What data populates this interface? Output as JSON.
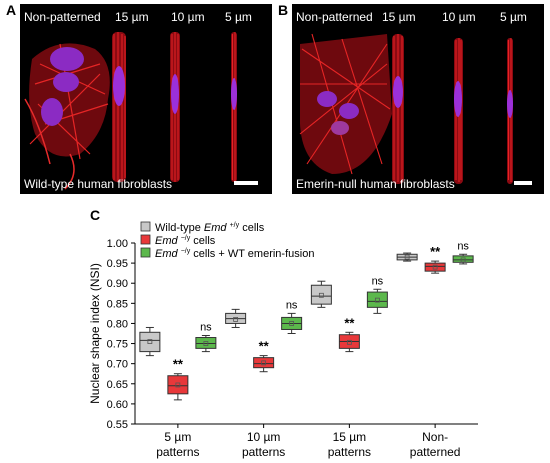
{
  "panel_a": {
    "letter": "A",
    "labels": [
      "Non-patterned",
      "15 µm",
      "10 µm",
      "5 µm"
    ],
    "caption": "Wild-type human fibroblasts"
  },
  "panel_b": {
    "letter": "B",
    "labels": [
      "Non-patterned",
      "15 µm",
      "10 µm",
      "5 µm"
    ],
    "caption": "Emerin-null human fibroblasts"
  },
  "panel_c": {
    "letter": "C"
  },
  "colors": {
    "wildtype": "#c8c8c8",
    "null": "#e8383a",
    "rescue": "#5cb84c",
    "actin": "#e8141e",
    "nucleus": "#8a2be2"
  },
  "chart_data": {
    "type": "box",
    "ylabel": "Nuclear shape index (NSI)",
    "ylim": [
      0.55,
      1.0
    ],
    "yticks": [
      "0.55",
      "0.60",
      "0.65",
      "0.70",
      "0.75",
      "0.80",
      "0.85",
      "0.90",
      "0.95",
      "1.00"
    ],
    "categories": [
      "5 µm patterns",
      "10 µm patterns",
      "15 µm patterns",
      "Non-patterned"
    ],
    "category_lines": [
      [
        "5 µm",
        "patterns"
      ],
      [
        "10 µm",
        "patterns"
      ],
      [
        "15 µm",
        "patterns"
      ],
      [
        "Non-",
        "patterned"
      ]
    ],
    "legend": [
      {
        "pre": "Wild-type ",
        "em": "Emd",
        "sup": "+/y",
        "post": " cells"
      },
      {
        "pre": "",
        "em": "Emd",
        "sup": "−/y",
        "post": " cells"
      },
      {
        "pre": "",
        "em": "Emd",
        "sup": "−/y",
        "post": " cells + WT emerin-fusion"
      }
    ],
    "series": [
      {
        "name": "Wild-type Emd +/y cells",
        "boxes": [
          {
            "min": 0.72,
            "q1": 0.73,
            "median": 0.758,
            "q3": 0.778,
            "max": 0.79,
            "mean": 0.755
          },
          {
            "min": 0.79,
            "q1": 0.8,
            "median": 0.812,
            "q3": 0.825,
            "max": 0.835,
            "mean": 0.81
          },
          {
            "min": 0.84,
            "q1": 0.848,
            "median": 0.868,
            "q3": 0.895,
            "max": 0.905,
            "mean": 0.87
          },
          {
            "min": 0.955,
            "q1": 0.958,
            "median": 0.965,
            "q3": 0.972,
            "max": 0.975,
            "mean": 0.965
          }
        ]
      },
      {
        "name": "Emd -/y cells",
        "boxes": [
          {
            "min": 0.61,
            "q1": 0.625,
            "median": 0.645,
            "q3": 0.67,
            "max": 0.675,
            "mean": 0.647
          },
          {
            "min": 0.68,
            "q1": 0.69,
            "median": 0.7,
            "q3": 0.715,
            "max": 0.72,
            "mean": 0.702
          },
          {
            "min": 0.73,
            "q1": 0.738,
            "median": 0.755,
            "q3": 0.772,
            "max": 0.778,
            "mean": 0.753
          },
          {
            "min": 0.925,
            "q1": 0.93,
            "median": 0.942,
            "q3": 0.95,
            "max": 0.955,
            "mean": 0.94
          }
        ]
      },
      {
        "name": "Emd -/y cells + WT emerin-fusion",
        "boxes": [
          {
            "min": 0.73,
            "q1": 0.738,
            "median": 0.75,
            "q3": 0.765,
            "max": 0.77,
            "mean": 0.75
          },
          {
            "min": 0.775,
            "q1": 0.785,
            "median": 0.8,
            "q3": 0.815,
            "max": 0.825,
            "mean": 0.8
          },
          {
            "min": 0.825,
            "q1": 0.84,
            "median": 0.855,
            "q3": 0.878,
            "max": 0.885,
            "mean": 0.858
          },
          {
            "min": 0.948,
            "q1": 0.952,
            "median": 0.958,
            "q3": 0.968,
            "max": 0.972,
            "mean": 0.958
          }
        ]
      }
    ],
    "annotations": [
      {
        "series": 1,
        "category": 0,
        "text": "**"
      },
      {
        "series": 2,
        "category": 0,
        "text": "ns"
      },
      {
        "series": 1,
        "category": 1,
        "text": "**"
      },
      {
        "series": 2,
        "category": 1,
        "text": "ns"
      },
      {
        "series": 1,
        "category": 2,
        "text": "**"
      },
      {
        "series": 2,
        "category": 2,
        "text": "ns"
      },
      {
        "series": 1,
        "category": 3,
        "text": "**"
      },
      {
        "series": 2,
        "category": 3,
        "text": "ns"
      }
    ]
  }
}
